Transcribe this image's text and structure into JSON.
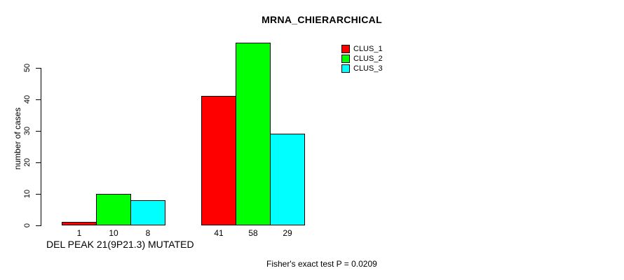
{
  "chart_data": {
    "type": "bar",
    "title": "MRNA_CHIERARCHICAL",
    "ylabel": "number of cases",
    "xlabel": "",
    "categories": [
      "DEL PEAK 21(9P21.3) MUTATED",
      ""
    ],
    "series": [
      {
        "name": "CLUS_1",
        "color": "#FF0000",
        "values": [
          1,
          41
        ]
      },
      {
        "name": "CLUS_2",
        "color": "#00FF00",
        "values": [
          10,
          58
        ]
      },
      {
        "name": "CLUS_3",
        "color": "#00FFFF",
        "values": [
          8,
          29
        ]
      }
    ],
    "bar_value_labels": [
      [
        1,
        10,
        8
      ],
      [
        41,
        58,
        29
      ]
    ],
    "yticks": [
      0,
      10,
      20,
      30,
      40,
      50
    ],
    "ylim": [
      0,
      58
    ],
    "grid": false,
    "legend_position": "inside-top-right",
    "legend_entries": [
      "CLUS_1",
      "CLUS_2",
      "CLUS_3"
    ],
    "group_axis_label": "DEL PEAK 21(9P21.3) MUTATED",
    "annotation": "Fisher's exact test P = 0.0209",
    "colors": {
      "background": "#FFFFFF",
      "axis": "#000000",
      "bar_border": "#000000",
      "clus_1": "#FF0000",
      "clus_2": "#00FF00",
      "clus_3": "#00FFFF"
    }
  }
}
